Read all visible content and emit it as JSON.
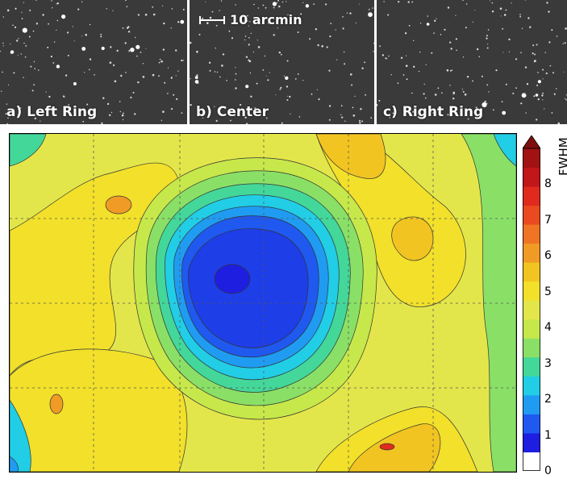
{
  "panels": [
    {
      "label": "a) Left Ring"
    },
    {
      "label": "b) Center"
    },
    {
      "label": "c) Right Ring"
    }
  ],
  "scale_bar": {
    "label": "10 arcmin"
  },
  "colorbar": {
    "title": "FWHM",
    "ticks": [
      "0",
      "1",
      "2",
      "3",
      "4",
      "5",
      "6",
      "7",
      "8"
    ],
    "range": [
      0,
      9
    ],
    "colors": [
      "#ffffff",
      "#1e1ee0",
      "#1f59f0",
      "#1f9cf2",
      "#22cde6",
      "#44d79a",
      "#8ae066",
      "#c7e84a",
      "#e3e64a",
      "#f2e02a",
      "#f2c421",
      "#f09b25",
      "#ef7424",
      "#ea4a1f",
      "#e02a1d",
      "#c1161a",
      "#a11212",
      "#7e0e0e"
    ]
  }
}
